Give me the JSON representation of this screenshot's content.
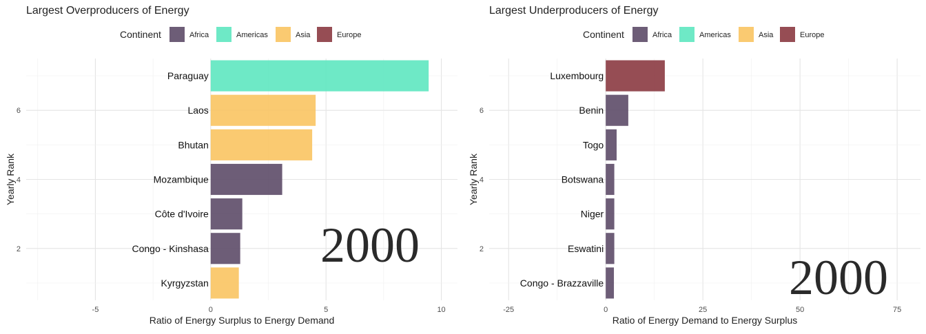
{
  "continent_colors": {
    "Africa": "#5d4b68",
    "Americas": "#5ee7c0",
    "Asia": "#f9c462",
    "Europe": "#8b3a41"
  },
  "chart_data": [
    {
      "type": "bar",
      "orientation": "horizontal",
      "title": "Largest Overproducers of Energy",
      "xlabel": "Ratio of Energy Surplus to Energy Demand",
      "ylabel": "Yearly Rank",
      "xlim": [
        -8.0,
        10.7
      ],
      "ylim": [
        0.5,
        7.5
      ],
      "xticks": [
        "-5",
        "0",
        "5",
        "10"
      ],
      "yticks": [
        "2",
        "4",
        "6"
      ],
      "grid": true,
      "legend": {
        "title": "Continent",
        "position": "top",
        "items": [
          "Africa",
          "Americas",
          "Asia",
          "Europe"
        ]
      },
      "year": "2000",
      "bars": [
        {
          "country": "Paraguay",
          "rank": 7,
          "value": 9.45,
          "continent": "Americas"
        },
        {
          "country": "Laos",
          "rank": 6,
          "value": 4.55,
          "continent": "Asia"
        },
        {
          "country": "Bhutan",
          "rank": 5,
          "value": 4.4,
          "continent": "Asia"
        },
        {
          "country": "Mozambique",
          "rank": 4,
          "value": 3.1,
          "continent": "Africa"
        },
        {
          "country": "Côte d'Ivoire",
          "rank": 3,
          "value": 1.37,
          "continent": "Africa"
        },
        {
          "country": "Congo - Kinshasa",
          "rank": 2,
          "value": 1.28,
          "continent": "Africa"
        },
        {
          "country": "Kyrgyzstan",
          "rank": 1,
          "value": 1.22,
          "continent": "Asia"
        }
      ]
    },
    {
      "type": "bar",
      "orientation": "horizontal",
      "title": "Largest Underproducers of Energy",
      "xlabel": "Ratio of Energy Demand to Energy Surplus",
      "ylabel": "Yearly Rank",
      "xlim": [
        -30.0,
        81.0
      ],
      "ylim": [
        0.5,
        7.5
      ],
      "xticks": [
        "-25",
        "0",
        "25",
        "50",
        "75"
      ],
      "yticks": [
        "2",
        "4",
        "6"
      ],
      "grid": true,
      "legend": {
        "title": "Continent",
        "position": "top",
        "items": [
          "Africa",
          "Americas",
          "Asia",
          "Europe"
        ]
      },
      "year": "2000",
      "bars": [
        {
          "country": "Luxembourg",
          "rank": 7,
          "value": 15.2,
          "continent": "Europe"
        },
        {
          "country": "Benin",
          "rank": 6,
          "value": 5.8,
          "continent": "Africa"
        },
        {
          "country": "Togo",
          "rank": 5,
          "value": 2.8,
          "continent": "Africa"
        },
        {
          "country": "Botswana",
          "rank": 4,
          "value": 2.2,
          "continent": "Africa"
        },
        {
          "country": "Niger",
          "rank": 3,
          "value": 2.2,
          "continent": "Africa"
        },
        {
          "country": "Eswatini",
          "rank": 2,
          "value": 2.2,
          "continent": "Africa"
        },
        {
          "country": "Congo - Brazzaville",
          "rank": 1,
          "value": 2.1,
          "continent": "Africa"
        }
      ]
    }
  ]
}
